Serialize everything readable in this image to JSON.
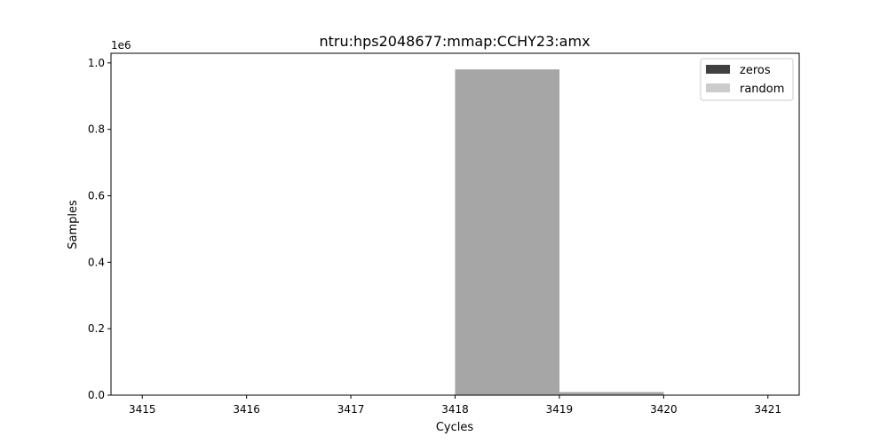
{
  "chart_data": {
    "type": "bar",
    "title": "ntru:hps2048677:mmap:CCHY23:amx",
    "xlabel": "Cycles",
    "ylabel": "Samples",
    "y_scale_label": "1e6",
    "xlim": [
      3414.7,
      3421.3
    ],
    "ylim": [
      0,
      1029000
    ],
    "x_ticks": [
      3415,
      3416,
      3417,
      3418,
      3419,
      3420,
      3421
    ],
    "x_tick_labels": [
      "3415",
      "3416",
      "3417",
      "3418",
      "3419",
      "3420",
      "3421"
    ],
    "y_ticks": [
      0,
      200000,
      400000,
      600000,
      800000,
      1000000
    ],
    "y_tick_labels": [
      "0.0",
      "0.2",
      "0.4",
      "0.6",
      "0.8",
      "1.0"
    ],
    "bin_width": 1,
    "series": [
      {
        "name": "zeros",
        "color": "#404040",
        "opacity": 1.0,
        "bins": [
          {
            "x": 3418,
            "value": 980000
          },
          {
            "x": 3419,
            "value": 9000
          }
        ]
      },
      {
        "name": "random",
        "color": "#bfbfbf",
        "opacity": 0.8,
        "bins": [
          {
            "x": 3418,
            "value": 980000
          },
          {
            "x": 3419,
            "value": 9000
          }
        ]
      }
    ],
    "overlap_color": "#a0a0a0",
    "legend": {
      "position": "top-right",
      "entries": [
        {
          "label": "zeros",
          "color": "#404040"
        },
        {
          "label": "random",
          "color": "#cccccc"
        }
      ]
    },
    "grid": false
  }
}
